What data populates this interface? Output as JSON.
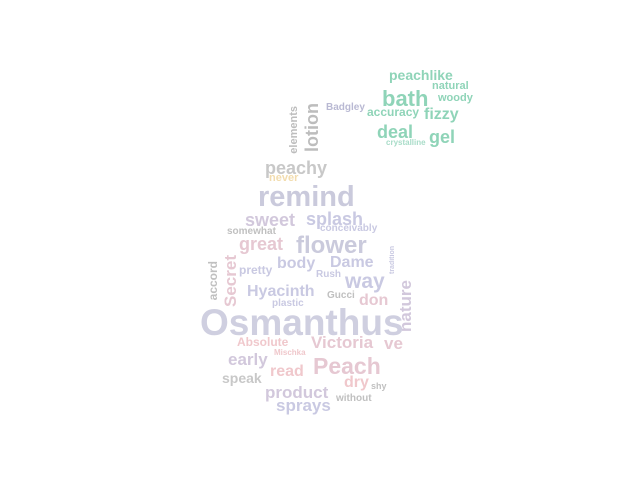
{
  "words": [
    {
      "text": "peachlike",
      "color": "#8fd4b8"
    },
    {
      "text": "natural",
      "color": "#8fd4b8"
    },
    {
      "text": "bath",
      "color": "#8fd4b8"
    },
    {
      "text": "woody",
      "color": "#8fd4b8"
    },
    {
      "text": "Badgley",
      "color": "#b9b9d3"
    },
    {
      "text": "accuracy",
      "color": "#8fd4b8"
    },
    {
      "text": "fizzy",
      "color": "#8fd4b8"
    },
    {
      "text": "deal",
      "color": "#8fd4b8"
    },
    {
      "text": "gel",
      "color": "#8fd4b8"
    },
    {
      "text": "crystalline",
      "color": "#a8dcc8"
    },
    {
      "text": "elements",
      "color": "#bdbdbd"
    },
    {
      "text": "lotion",
      "color": "#bdbdbd"
    },
    {
      "text": "peachy",
      "color": "#c8c8c8"
    },
    {
      "text": "never",
      "color": "#f2dcae"
    },
    {
      "text": "remind",
      "color": "#cacadc"
    },
    {
      "text": "sweet",
      "color": "#d2c8dc"
    },
    {
      "text": "splash",
      "color": "#c9c9e2"
    },
    {
      "text": "somewhat",
      "color": "#c0c0c0"
    },
    {
      "text": "conceivably",
      "color": "#c9c9e2"
    },
    {
      "text": "great",
      "color": "#e6c8d2"
    },
    {
      "text": "flower",
      "color": "#cacadc"
    },
    {
      "text": "tradition",
      "color": "#c9c9e2"
    },
    {
      "text": "body",
      "color": "#c9c9e2"
    },
    {
      "text": "Dame",
      "color": "#c9c9e2"
    },
    {
      "text": "accord",
      "color": "#c0c0c0"
    },
    {
      "text": "Secret",
      "color": "#e6c8d2"
    },
    {
      "text": "pretty",
      "color": "#c9c9e2"
    },
    {
      "text": "Rush",
      "color": "#c9c9e2"
    },
    {
      "text": "way",
      "color": "#c9c9e2"
    },
    {
      "text": "Hyacinth",
      "color": "#c9c9e2"
    },
    {
      "text": "Gucci",
      "color": "#c0c0c0"
    },
    {
      "text": "don",
      "color": "#e6c8d2"
    },
    {
      "text": "plastic",
      "color": "#c9c9e2"
    },
    {
      "text": "nature",
      "color": "#d2c8dc"
    },
    {
      "text": "Osmanthus",
      "color": "#cfcfe0"
    },
    {
      "text": "Absolute",
      "color": "#f0c8cc"
    },
    {
      "text": "Victoria",
      "color": "#e6c8d2"
    },
    {
      "text": "ve",
      "color": "#e6c8d2"
    },
    {
      "text": "Mischka",
      "color": "#f0c8cc"
    },
    {
      "text": "early",
      "color": "#d2c8dc"
    },
    {
      "text": "Peach",
      "color": "#e6c8d2"
    },
    {
      "text": "read",
      "color": "#f0c8cc"
    },
    {
      "text": "speak",
      "color": "#c8c8c8"
    },
    {
      "text": "dry",
      "color": "#f0c8cc"
    },
    {
      "text": "shy",
      "color": "#c0c0c0"
    },
    {
      "text": "product",
      "color": "#d2c8dc"
    },
    {
      "text": "without",
      "color": "#c0c0c0"
    },
    {
      "text": "sprays",
      "color": "#c9c9e2"
    }
  ]
}
